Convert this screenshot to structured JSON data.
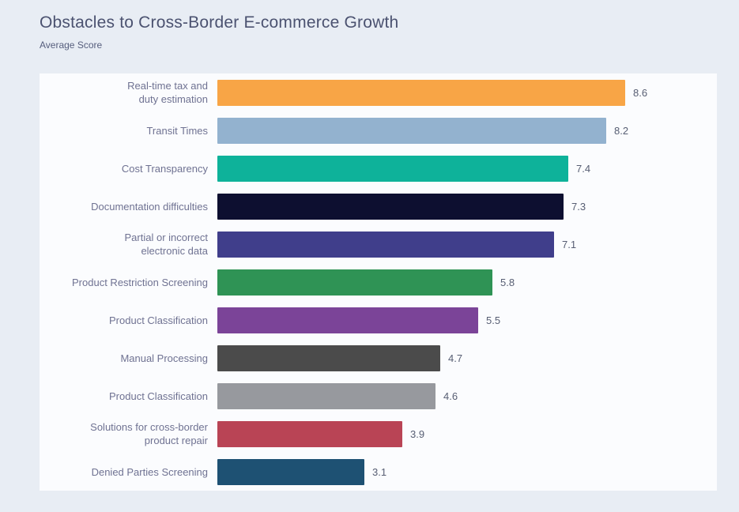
{
  "page": {
    "title": "Obstacles to Cross-Border E-commerce Growth",
    "subtitle": "Average Score"
  },
  "colors": {
    "page_background": "#E8EDF4",
    "panel_background": "#FBFCFE",
    "title_color": "#4B5270",
    "subtitle_color": "#565E7D",
    "label_color": "#6F7292",
    "value_color": "#575E73"
  },
  "chart_data": {
    "type": "bar",
    "orientation": "horizontal",
    "title": "Obstacles to Cross-Border E-commerce Growth",
    "subtitle": "Average Score",
    "xlabel": "",
    "ylabel": "",
    "xlim": [
      0,
      10
    ],
    "grid": false,
    "legend": "none",
    "value_labels": "end-of-bar",
    "categories": [
      "Real-time tax and\nduty estimation",
      "Transit Times",
      "Cost Transparency",
      "Documentation difficulties",
      "Partial or incorrect\nelectronic data",
      "Product Restriction Screening",
      "Product Classification",
      "Manual Processing",
      "Product Classification",
      "Solutions for cross-border\nproduct repair",
      "Denied Parties Screening"
    ],
    "values": [
      8.6,
      8.2,
      7.4,
      7.3,
      7.1,
      5.8,
      5.5,
      4.7,
      4.6,
      3.9,
      3.1
    ],
    "bar_colors": [
      "#F8A546",
      "#93B2CF",
      "#0EB29A",
      "#0D0F30",
      "#403E8B",
      "#2F9355",
      "#7B4498",
      "#4B4B4B",
      "#97999E",
      "#B94455",
      "#1E5173"
    ]
  }
}
